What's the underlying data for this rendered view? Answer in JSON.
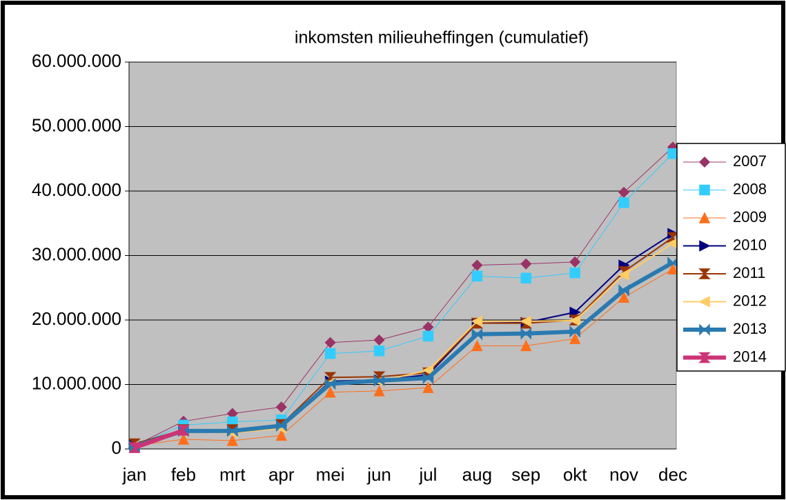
{
  "chart_data": {
    "type": "line",
    "title": "inkomsten milieuheffingen (cumulatief)",
    "categories": [
      "jan",
      "feb",
      "mrt",
      "apr",
      "mei",
      "jun",
      "jul",
      "aug",
      "sep",
      "okt",
      "nov",
      "dec"
    ],
    "ylim": [
      0,
      60000000
    ],
    "yticks": [
      0,
      {
        "value": 10000000,
        "label": "10.000.000"
      },
      {
        "value": 20000000,
        "label": "20.000.000"
      },
      {
        "value": 30000000,
        "label": "30.000.000"
      },
      {
        "value": 40000000,
        "label": "40.000.000"
      },
      {
        "value": 50000000,
        "label": "50.000.000"
      },
      {
        "value": 60000000,
        "label": "60.000.000"
      }
    ],
    "grid": true,
    "legend": "right",
    "series": [
      {
        "name": "2007",
        "color": "#993366",
        "marker": "diamond",
        "line_width": 1,
        "values": [
          500000,
          4300000,
          5500000,
          6500000,
          16500000,
          16900000,
          18900000,
          28500000,
          28700000,
          29000000,
          39800000,
          46800000
        ]
      },
      {
        "name": "2008",
        "color": "#33ccff",
        "marker": "square",
        "line_width": 1,
        "values": [
          500000,
          3700000,
          4200000,
          4500000,
          14800000,
          15200000,
          17500000,
          26800000,
          26500000,
          27300000,
          38200000,
          45800000
        ]
      },
      {
        "name": "2009",
        "color": "#ff6f1a",
        "marker": "triangle-up",
        "line_width": 1,
        "values": [
          500000,
          1500000,
          1300000,
          2100000,
          8800000,
          9000000,
          9500000,
          16000000,
          16000000,
          17100000,
          23500000,
          27900000
        ]
      },
      {
        "name": "2010",
        "color": "#000080",
        "marker": "triangle-right",
        "line_width": 2,
        "values": [
          600000,
          2900000,
          2900000,
          3700000,
          10500000,
          10700000,
          11500000,
          19500000,
          19600000,
          21200000,
          28500000,
          33400000
        ]
      },
      {
        "name": "2011",
        "color": "#993300",
        "marker": "hourglass",
        "line_width": 2,
        "values": [
          800000,
          3000000,
          3000000,
          3800000,
          11100000,
          11200000,
          11800000,
          19500000,
          19500000,
          20000000,
          27500000,
          32800000
        ]
      },
      {
        "name": "2012",
        "color": "#ffcc66",
        "marker": "triangle-left",
        "line_width": 2,
        "values": [
          500000,
          2700000,
          2500000,
          3200000,
          10200000,
          10500000,
          12200000,
          19800000,
          19800000,
          19900000,
          27000000,
          31900000
        ]
      },
      {
        "name": "2013",
        "color": "#2a7ab0",
        "marker": "bowtie",
        "line_width": 6,
        "values": [
          400000,
          2800000,
          2800000,
          3600000,
          10100000,
          10600000,
          11000000,
          17800000,
          17900000,
          18200000,
          24600000,
          28900000
        ]
      },
      {
        "name": "2014",
        "color": "#cc3377",
        "marker": "hourglass",
        "line_width": 6,
        "values": [
          200000,
          2900000,
          null,
          null,
          null,
          null,
          null,
          null,
          null,
          null,
          null,
          null
        ]
      }
    ]
  }
}
